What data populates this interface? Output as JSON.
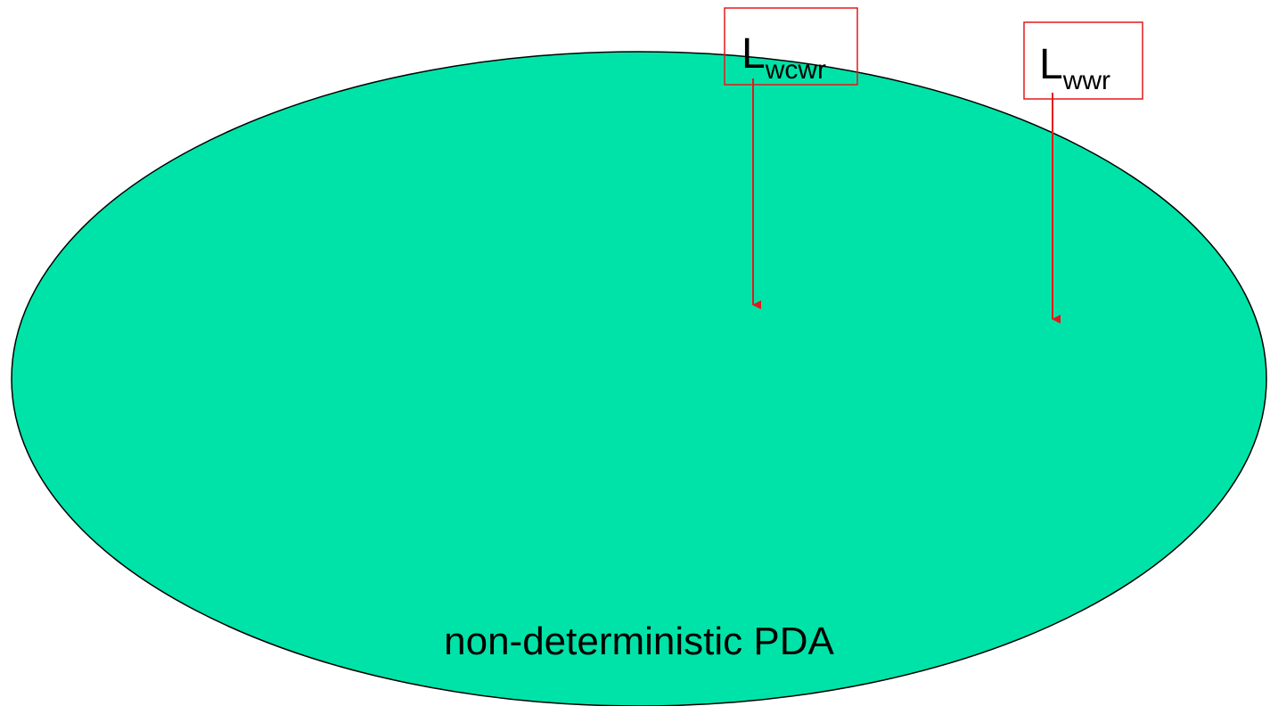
{
  "colors": {
    "region_fill": "#00E3A8",
    "region_stroke": "#000000",
    "box_stroke": "#E3191C",
    "arrow": "#E3191C"
  },
  "region": {
    "label": "non-deterministic PDA"
  },
  "languages": [
    {
      "main": "L",
      "sub": "wcwr"
    },
    {
      "main": "L",
      "sub": "wwr"
    }
  ]
}
